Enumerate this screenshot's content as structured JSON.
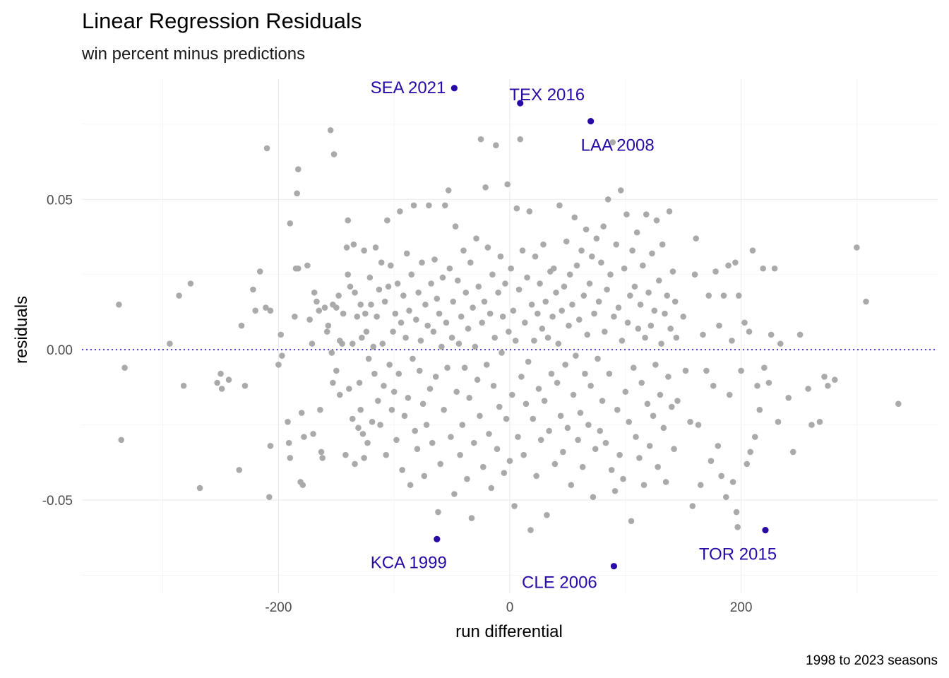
{
  "chart_data": {
    "type": "scatter",
    "title": "Linear Regression Residuals",
    "subtitle": "win percent minus predictions",
    "xlabel": "run differential",
    "ylabel": "residuals",
    "caption": "1998 to 2023 seasons",
    "xlim": [
      -370,
      370
    ],
    "ylim": [
      -0.081,
      0.09
    ],
    "x_ticks": [
      -200,
      0,
      200
    ],
    "x_tick_labels": [
      "-200",
      "0",
      "200"
    ],
    "y_ticks": [
      -0.05,
      0.0,
      0.05
    ],
    "y_tick_labels": [
      "-0.05",
      "0.00",
      "0.05"
    ],
    "grid": true,
    "reference_line": {
      "y": 0,
      "style": "dotted"
    },
    "colors": {
      "points": "#aaaaaa",
      "highlight": "#2a0aa6",
      "reference_line": "#2a0aa6"
    },
    "highlighted": [
      {
        "label": "SEA 2021",
        "x": -48,
        "y": 0.087
      },
      {
        "label": "TEX 2016",
        "x": 9,
        "y": 0.082
      },
      {
        "label": "LAA 2008",
        "x": 70,
        "y": 0.076
      },
      {
        "label": "KCA 1999",
        "x": -63,
        "y": -0.063
      },
      {
        "label": "CLE 2006",
        "x": 90,
        "y": -0.072
      },
      {
        "label": "TOR 2015",
        "x": 221,
        "y": -0.06
      }
    ],
    "points": [
      [
        -338,
        0.015
      ],
      [
        -333,
        -0.006
      ],
      [
        -336,
        -0.03
      ],
      [
        -294,
        0.002
      ],
      [
        -286,
        0.018
      ],
      [
        -282,
        -0.012
      ],
      [
        -276,
        0.022
      ],
      [
        -268,
        -0.046
      ],
      [
        -253,
        -0.011
      ],
      [
        -250,
        -0.008
      ],
      [
        -249,
        -0.013
      ],
      [
        -243,
        -0.01
      ],
      [
        -234,
        -0.04
      ],
      [
        -232,
        0.008
      ],
      [
        -229,
        -0.012
      ],
      [
        -222,
        0.02
      ],
      [
        -220,
        0.013
      ],
      [
        -216,
        0.026
      ],
      [
        -211,
        0.014
      ],
      [
        -210,
        0.067
      ],
      [
        -208,
        -0.049
      ],
      [
        -207,
        -0.032
      ],
      [
        -207,
        0.013
      ],
      [
        -200,
        -0.005
      ],
      [
        -198,
        0.005
      ],
      [
        -197,
        -0.002
      ],
      [
        -192,
        -0.024
      ],
      [
        -191,
        -0.031
      ],
      [
        -190,
        0.042
      ],
      [
        -190,
        -0.036
      ],
      [
        -186,
        0.011
      ],
      [
        -185,
        0.027
      ],
      [
        -184,
        0.052
      ],
      [
        -183,
        0.06
      ],
      [
        -183,
        0.027
      ],
      [
        -181,
        -0.044
      ],
      [
        -180,
        -0.021
      ],
      [
        -179,
        -0.045
      ],
      [
        -178,
        -0.029
      ],
      [
        -175,
        0.028
      ],
      [
        -173,
        0.01
      ],
      [
        -171,
        0.002
      ],
      [
        -170,
        -0.028
      ],
      [
        -169,
        0.019
      ],
      [
        -167,
        0.016
      ],
      [
        -165,
        0.013
      ],
      [
        -164,
        -0.02
      ],
      [
        -163,
        -0.034
      ],
      [
        -162,
        -0.036
      ],
      [
        -160,
        0.014
      ],
      [
        -158,
        0.006
      ],
      [
        -157,
        0.008
      ],
      [
        -155,
        0.073
      ],
      [
        -154,
        -0.001
      ],
      [
        -153,
        0.015
      ],
      [
        -153,
        -0.011
      ],
      [
        -152,
        0.065
      ],
      [
        -150,
        -0.007
      ],
      [
        -150,
        0.014
      ],
      [
        -148,
        0.018
      ],
      [
        -147,
        0.003
      ],
      [
        -147,
        -0.015
      ],
      [
        -145,
        0.002
      ],
      [
        -144,
        0.012
      ],
      [
        -142,
        -0.035
      ],
      [
        -141,
        0.034
      ],
      [
        -140,
        0.043
      ],
      [
        -140,
        0.025
      ],
      [
        -139,
        -0.013
      ],
      [
        -138,
        0.021
      ],
      [
        -136,
        0.002
      ],
      [
        -136,
        -0.023
      ],
      [
        -135,
        0.035
      ],
      [
        -134,
        0.019
      ],
      [
        -134,
        -0.038
      ],
      [
        -132,
        0.011
      ],
      [
        -131,
        -0.026
      ],
      [
        -130,
        -0.011
      ],
      [
        -129,
        0.015
      ],
      [
        -129,
        -0.02
      ],
      [
        -128,
        0.004
      ],
      [
        -127,
        -0.028
      ],
      [
        -126,
        0.033
      ],
      [
        -126,
        -0.036
      ],
      [
        -125,
        0.012
      ],
      [
        -124,
        0.006
      ],
      [
        -123,
        -0.031
      ],
      [
        -122,
        -0.003
      ],
      [
        -121,
        0.024
      ],
      [
        -120,
        0.015
      ],
      [
        -119,
        -0.024
      ],
      [
        -118,
        0.001
      ],
      [
        -117,
        -0.008
      ],
      [
        -116,
        0.034
      ],
      [
        -115,
        0.011
      ],
      [
        -114,
        -0.017
      ],
      [
        -113,
        0.02
      ],
      [
        -112,
        -0.025
      ],
      [
        -111,
        0.029
      ],
      [
        -110,
        0.002
      ],
      [
        -109,
        -0.012
      ],
      [
        -108,
        0.016
      ],
      [
        -107,
        -0.035
      ],
      [
        -106,
        0.043
      ],
      [
        -105,
        0.021
      ],
      [
        -104,
        -0.005
      ],
      [
        -103,
        0.028
      ],
      [
        -102,
        -0.02
      ],
      [
        -101,
        0.006
      ],
      [
        -100,
        -0.014
      ],
      [
        -99,
        0.012
      ],
      [
        -98,
        -0.03
      ],
      [
        -97,
        0.022
      ],
      [
        -96,
        -0.008
      ],
      [
        -95,
        0.046
      ],
      [
        -94,
        0.009
      ],
      [
        -93,
        -0.04
      ],
      [
        -92,
        0.018
      ],
      [
        -91,
        -0.022
      ],
      [
        -90,
        0.004
      ],
      [
        -89,
        0.032
      ],
      [
        -88,
        -0.016
      ],
      [
        -87,
        0.013
      ],
      [
        -86,
        -0.045
      ],
      [
        -85,
        0.025
      ],
      [
        -84,
        -0.003
      ],
      [
        -83,
        0.048
      ],
      [
        -82,
        -0.027
      ],
      [
        -81,
        0.01
      ],
      [
        -80,
        -0.033
      ],
      [
        -79,
        0.019
      ],
      [
        -78,
        -0.007
      ],
      [
        -77,
        0.003
      ],
      [
        -76,
        0.029
      ],
      [
        -75,
        -0.018
      ],
      [
        -74,
        -0.042
      ],
      [
        -73,
        0.015
      ],
      [
        -72,
        -0.025
      ],
      [
        -71,
        0.008
      ],
      [
        -70,
        0.048
      ],
      [
        -69,
        -0.013
      ],
      [
        -68,
        0.022
      ],
      [
        -67,
        -0.031
      ],
      [
        -66,
        0.006
      ],
      [
        -65,
        0.03
      ],
      [
        -64,
        -0.009
      ],
      [
        -63,
        0.017
      ],
      [
        -62,
        -0.054
      ],
      [
        -61,
        0.012
      ],
      [
        -60,
        -0.038
      ],
      [
        -59,
        0.001
      ],
      [
        -58,
        0.024
      ],
      [
        -57,
        -0.02
      ],
      [
        -56,
        0.048
      ],
      [
        -55,
        0.009
      ],
      [
        -54,
        -0.006
      ],
      [
        -53,
        0.053
      ],
      [
        -52,
        0.027
      ],
      [
        -51,
        -0.029
      ],
      [
        -50,
        0.004
      ],
      [
        -49,
        0.016
      ],
      [
        -48,
        -0.048
      ],
      [
        -47,
        0.041
      ],
      [
        -46,
        -0.014
      ],
      [
        -45,
        0.023
      ],
      [
        -44,
        0.002
      ],
      [
        -43,
        -0.035
      ],
      [
        -42,
        0.011
      ],
      [
        -41,
        -0.025
      ],
      [
        -40,
        0.033
      ],
      [
        -39,
        -0.006
      ],
      [
        -38,
        0.019
      ],
      [
        -37,
        -0.043
      ],
      [
        -36,
        0.007
      ],
      [
        -35,
        -0.016
      ],
      [
        -34,
        0.029
      ],
      [
        -33,
        -0.056
      ],
      [
        -32,
        0.014
      ],
      [
        -31,
        -0.031
      ],
      [
        -30,
        0.001
      ],
      [
        -29,
        0.037
      ],
      [
        -28,
        -0.01
      ],
      [
        -27,
        0.021
      ],
      [
        -26,
        -0.022
      ],
      [
        -25,
        0.07
      ],
      [
        -24,
        0.009
      ],
      [
        -23,
        -0.039
      ],
      [
        -22,
        0.016
      ],
      [
        -21,
        0.054
      ],
      [
        -20,
        -0.005
      ],
      [
        -19,
        0.034
      ],
      [
        -18,
        -0.028
      ],
      [
        -17,
        0.012
      ],
      [
        -16,
        -0.046
      ],
      [
        -15,
        0.025
      ],
      [
        -14,
        -0.012
      ],
      [
        -13,
        0.004
      ],
      [
        -12,
        0.068
      ],
      [
        -11,
        -0.033
      ],
      [
        -10,
        0.019
      ],
      [
        -9,
        -0.019
      ],
      [
        -8,
        0.031
      ],
      [
        -7,
        -0.001
      ],
      [
        -6,
        0.011
      ],
      [
        -5,
        -0.041
      ],
      [
        -4,
        0.022
      ],
      [
        -3,
        -0.023
      ],
      [
        -2,
        0.055
      ],
      [
        -1,
        0.006
      ],
      [
        0,
        -0.037
      ],
      [
        1,
        0.027
      ],
      [
        2,
        -0.015
      ],
      [
        3,
        0.013
      ],
      [
        4,
        -0.052
      ],
      [
        5,
        0.003
      ],
      [
        6,
        0.047
      ],
      [
        7,
        -0.029
      ],
      [
        8,
        0.02
      ],
      [
        9,
        0.07
      ],
      [
        10,
        -0.009
      ],
      [
        11,
        0.033
      ],
      [
        12,
        -0.035
      ],
      [
        13,
        0.009
      ],
      [
        14,
        -0.018
      ],
      [
        15,
        0.024
      ],
      [
        16,
        -0.004
      ],
      [
        17,
        0.046
      ],
      [
        18,
        -0.06
      ],
      [
        19,
        0.015
      ],
      [
        20,
        -0.023
      ],
      [
        21,
        0.003
      ],
      [
        22,
        0.031
      ],
      [
        23,
        -0.042
      ],
      [
        24,
        0.012
      ],
      [
        25,
        -0.013
      ],
      [
        26,
        0.022
      ],
      [
        27,
        -0.03
      ],
      [
        28,
        0.007
      ],
      [
        29,
        0.035
      ],
      [
        30,
        -0.017
      ],
      [
        31,
        0.016
      ],
      [
        32,
        -0.055
      ],
      [
        33,
        0.004
      ],
      [
        34,
        -0.027
      ],
      [
        35,
        0.026
      ],
      [
        36,
        -0.008
      ],
      [
        37,
        0.011
      ],
      [
        38,
        0.027
      ],
      [
        39,
        -0.038
      ],
      [
        40,
        0.019
      ],
      [
        41,
        -0.011
      ],
      [
        42,
        0.002
      ],
      [
        43,
        0.048
      ],
      [
        44,
        -0.022
      ],
      [
        45,
        0.013
      ],
      [
        46,
        -0.034
      ],
      [
        47,
        0.021
      ],
      [
        48,
        -0.005
      ],
      [
        49,
        0.036
      ],
      [
        50,
        -0.026
      ],
      [
        51,
        0.008
      ],
      [
        52,
        0.025
      ],
      [
        53,
        -0.045
      ],
      [
        54,
        0.015
      ],
      [
        55,
        -0.015
      ],
      [
        56,
        0.044
      ],
      [
        57,
        -0.002
      ],
      [
        58,
        0.028
      ],
      [
        59,
        -0.03
      ],
      [
        60,
        0.01
      ],
      [
        61,
        -0.021
      ],
      [
        62,
        0.033
      ],
      [
        63,
        -0.039
      ],
      [
        64,
        0.018
      ],
      [
        65,
        -0.008
      ],
      [
        66,
        0.04
      ],
      [
        67,
        0.005
      ],
      [
        68,
        -0.025
      ],
      [
        69,
        0.022
      ],
      [
        70,
        -0.012
      ],
      [
        71,
        0.031
      ],
      [
        72,
        -0.049
      ],
      [
        73,
        0.012
      ],
      [
        74,
        -0.033
      ],
      [
        75,
        0.037
      ],
      [
        76,
        -0.003
      ],
      [
        77,
        0.016
      ],
      [
        78,
        -0.027
      ],
      [
        79,
        0.029
      ],
      [
        80,
        -0.017
      ],
      [
        81,
        0.041
      ],
      [
        82,
        0.006
      ],
      [
        83,
        -0.031
      ],
      [
        84,
        0.02
      ],
      [
        85,
        0.05
      ],
      [
        86,
        -0.008
      ],
      [
        87,
        0.025
      ],
      [
        88,
        -0.04
      ],
      [
        89,
        0.069
      ],
      [
        90,
        0.011
      ],
      [
        91,
        -0.047
      ],
      [
        92,
        0.035
      ],
      [
        93,
        -0.02
      ],
      [
        94,
        0.014
      ],
      [
        95,
        -0.035
      ],
      [
        96,
        0.053
      ],
      [
        97,
        0.003
      ],
      [
        98,
        -0.043
      ],
      [
        99,
        0.027
      ],
      [
        100,
        -0.014
      ],
      [
        101,
        0.045
      ],
      [
        102,
        0.009
      ],
      [
        103,
        -0.024
      ],
      [
        104,
        0.018
      ],
      [
        105,
        -0.057
      ],
      [
        106,
        0.033
      ],
      [
        107,
        -0.006
      ],
      [
        108,
        0.021
      ],
      [
        109,
        -0.029
      ],
      [
        110,
        0.039
      ],
      [
        111,
        0.007
      ],
      [
        112,
        -0.036
      ],
      [
        113,
        0.015
      ],
      [
        114,
        -0.011
      ],
      [
        115,
        0.028
      ],
      [
        116,
        -0.045
      ],
      [
        117,
        0.004
      ],
      [
        118,
        0.045
      ],
      [
        119,
        -0.018
      ],
      [
        120,
        0.019
      ],
      [
        121,
        -0.032
      ],
      [
        122,
        0.008
      ],
      [
        123,
        0.032
      ],
      [
        124,
        -0.022
      ],
      [
        125,
        0.013
      ],
      [
        126,
        -0.005
      ],
      [
        127,
        0.043
      ],
      [
        128,
        -0.039
      ],
      [
        129,
        0.023
      ],
      [
        130,
        -0.015
      ],
      [
        131,
        0.002
      ],
      [
        132,
        0.035
      ],
      [
        133,
        -0.026
      ],
      [
        134,
        0.012
      ],
      [
        135,
        -0.044
      ],
      [
        136,
        0.018
      ],
      [
        137,
        -0.009
      ],
      [
        138,
        0.046
      ],
      [
        139,
        0.007
      ],
      [
        140,
        -0.019
      ],
      [
        141,
        0.026
      ],
      [
        142,
        -0.033
      ],
      [
        143,
        0.016
      ],
      [
        144,
        0.004
      ],
      [
        145,
        -0.017
      ],
      [
        150,
        0.011
      ],
      [
        152,
        -0.007
      ],
      [
        156,
        -0.024
      ],
      [
        158,
        -0.052
      ],
      [
        160,
        0.025
      ],
      [
        161,
        0.037
      ],
      [
        163,
        -0.025
      ],
      [
        165,
        -0.045
      ],
      [
        167,
        0.005
      ],
      [
        170,
        -0.007
      ],
      [
        172,
        0.018
      ],
      [
        174,
        -0.037
      ],
      [
        176,
        -0.012
      ],
      [
        178,
        0.026
      ],
      [
        180,
        -0.032
      ],
      [
        181,
        0.008
      ],
      [
        183,
        -0.042
      ],
      [
        185,
        0.018
      ],
      [
        187,
        -0.049
      ],
      [
        189,
        0.028
      ],
      [
        190,
        -0.015
      ],
      [
        192,
        0.003
      ],
      [
        193,
        -0.044
      ],
      [
        195,
        0.029
      ],
      [
        196,
        -0.054
      ],
      [
        197,
        -0.059
      ],
      [
        198,
        0.018
      ],
      [
        200,
        -0.007
      ],
      [
        203,
        0.009
      ],
      [
        205,
        -0.038
      ],
      [
        207,
        0.006
      ],
      [
        208,
        -0.034
      ],
      [
        210,
        0.033
      ],
      [
        212,
        -0.029
      ],
      [
        214,
        -0.012
      ],
      [
        216,
        -0.02
      ],
      [
        219,
        0.027
      ],
      [
        220,
        -0.006
      ],
      [
        224,
        -0.011
      ],
      [
        226,
        0.005
      ],
      [
        229,
        0.027
      ],
      [
        232,
        -0.024
      ],
      [
        234,
        0.002
      ],
      [
        241,
        -0.016
      ],
      [
        245,
        -0.034
      ],
      [
        251,
        0.005
      ],
      [
        258,
        -0.013
      ],
      [
        261,
        -0.025
      ],
      [
        268,
        -0.024
      ],
      [
        272,
        -0.009
      ],
      [
        275,
        -0.012
      ],
      [
        281,
        -0.01
      ],
      [
        300,
        0.034
      ],
      [
        308,
        0.016
      ],
      [
        336,
        -0.018
      ]
    ]
  }
}
